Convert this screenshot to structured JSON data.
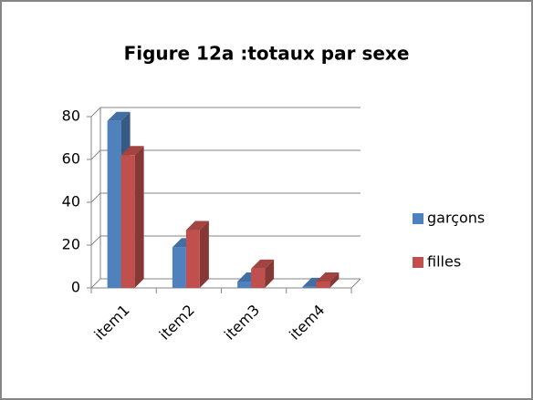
{
  "chart_data": {
    "type": "bar3d",
    "title": "Figure  12a :totaux par sexe",
    "categories": [
      "item1",
      "item2",
      "item3",
      "item4"
    ],
    "series": [
      {
        "name": "garçons",
        "color": "#4f81bd",
        "values": [
          78,
          19,
          3,
          0.5
        ]
      },
      {
        "name": "filles",
        "color": "#c0504d",
        "values": [
          62,
          27,
          9,
          3
        ]
      }
    ],
    "ylim": [
      0,
      80
    ],
    "yticks": [
      0,
      20,
      40,
      60,
      80
    ],
    "grid": true,
    "legend": "right"
  }
}
